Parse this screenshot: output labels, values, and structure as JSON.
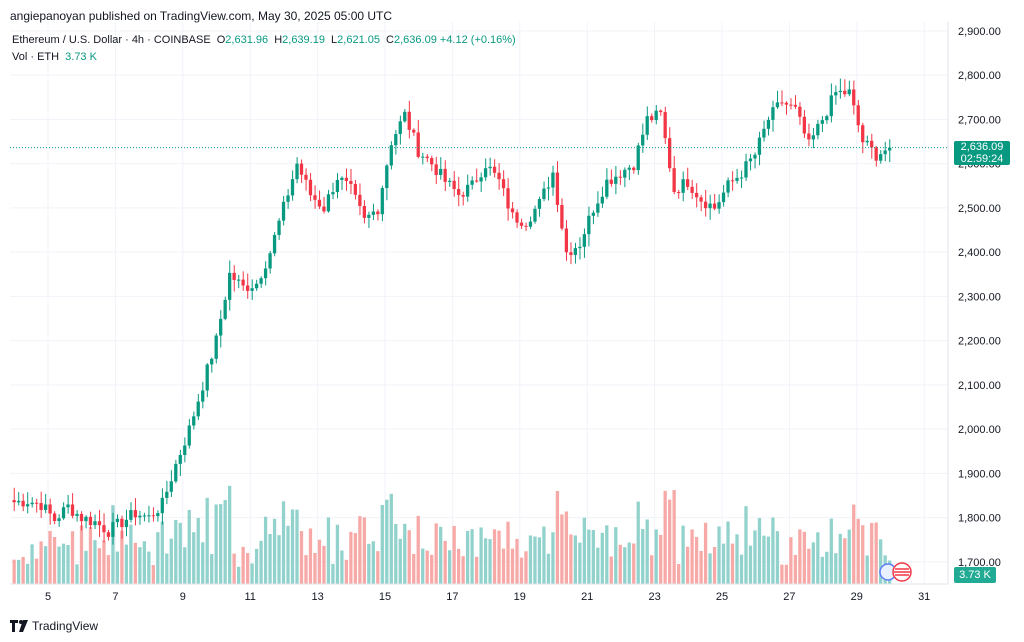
{
  "header": {
    "published": "angiepanoyan published on TradingView.com, May 30, 2025 05:00 UTC"
  },
  "legend": {
    "symbol": "Ethereum / U.S. Dollar · 4h · COINBASE",
    "o_label": "O",
    "o_value": "2,631.96",
    "h_label": "H",
    "h_value": "2,639.19",
    "l_label": "L",
    "l_value": "2,621.05",
    "c_label": "C",
    "c_value": "2,636.09",
    "change": "+4.12 (+0.16%)",
    "vol_label": "Vol · ETH",
    "vol_value": "3.73 K"
  },
  "price_tag": {
    "price": "2,636.09",
    "countdown": "02:59:24"
  },
  "volume_tag": "3.73 K",
  "footer": {
    "brand": "TradingView"
  },
  "colors": {
    "up": "#089981",
    "down": "#f23645",
    "up_vol": "#92d2cc",
    "down_vol": "#f7a9a7",
    "grid": "#f0f3fa"
  },
  "chart_data": {
    "type": "candlestick",
    "ylim": [
      1650,
      2920
    ],
    "y_ticks": [
      "2,900.00",
      "2,800.00",
      "2,700.00",
      "2,600.00",
      "2,500.00",
      "2,400.00",
      "2,300.00",
      "2,200.00",
      "2,100.00",
      "2,000.00",
      "1,900.00",
      "1,800.00",
      "1,700.00"
    ],
    "x_ticks": [
      "5",
      "7",
      "9",
      "11",
      "13",
      "15",
      "17",
      "19",
      "21",
      "23",
      "25",
      "27",
      "29",
      "31"
    ],
    "last_price": 2636.09,
    "volume_ylim": [
      0,
      60
    ],
    "anchors": [
      1835,
      1838,
      1830,
      1795,
      1825,
      1800,
      1790,
      1770,
      1790,
      1810,
      1800,
      1830,
      1920,
      2000,
      2100,
      2200,
      2350,
      2320,
      2330,
      2400,
      2500,
      2600,
      2530,
      2500,
      2570,
      2540,
      2470,
      2500,
      2650,
      2710,
      2630,
      2600,
      2560,
      2530,
      2550,
      2600,
      2560,
      2480,
      2470,
      2510,
      2580,
      2400,
      2420,
      2500,
      2560,
      2580,
      2600,
      2700,
      2710,
      2540,
      2560,
      2520,
      2500,
      2550,
      2580,
      2620,
      2700,
      2740,
      2720,
      2640,
      2700,
      2760,
      2760,
      2650,
      2620,
      2636
    ]
  }
}
